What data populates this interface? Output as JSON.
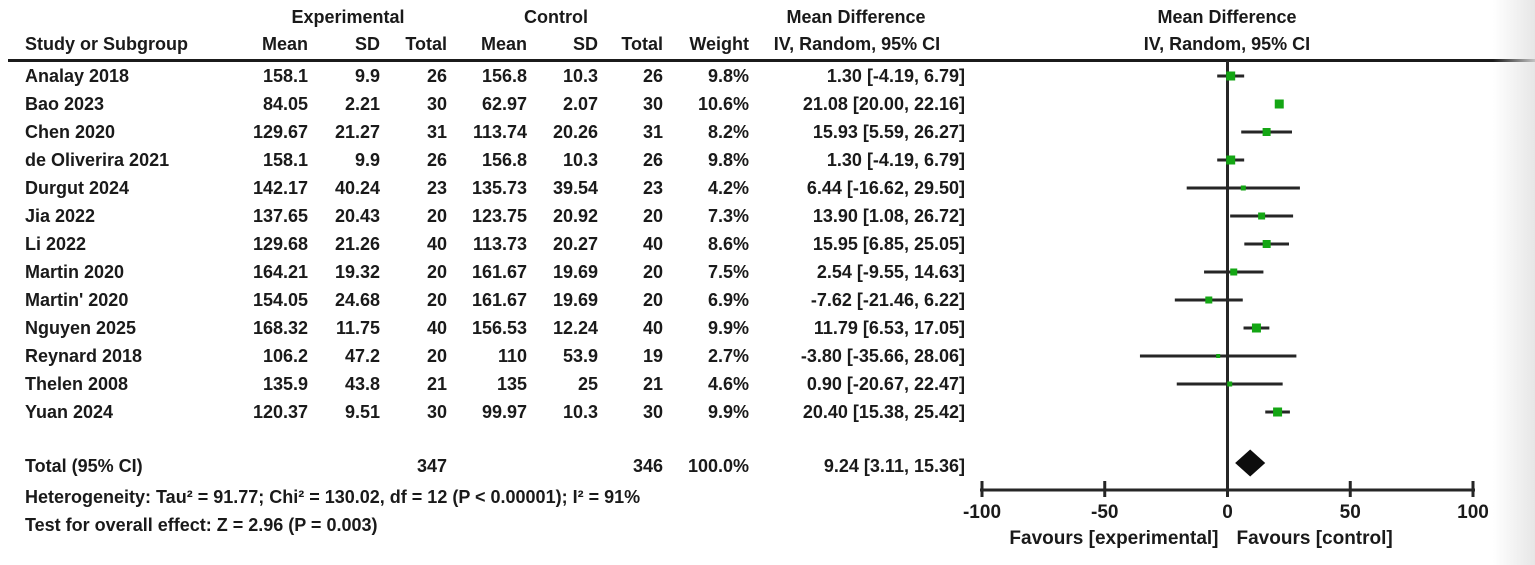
{
  "table": {
    "group_headers": {
      "experimental": "Experimental",
      "control": "Control",
      "md_text": "Mean Difference",
      "md_plot": "Mean Difference"
    },
    "col_headers": {
      "study": "Study or Subgroup",
      "mean": "Mean",
      "sd": "SD",
      "total": "Total",
      "weight": "Weight",
      "iv": "IV, Random, 95% CI",
      "iv_plot": "IV, Random, 95% CI"
    },
    "rows": [
      {
        "study": "Analay 2018",
        "exp_mean": "158.1",
        "exp_sd": "9.9",
        "exp_total": "26",
        "ctl_mean": "156.8",
        "ctl_sd": "10.3",
        "ctl_total": "26",
        "weight": "9.8%",
        "ci_text": "1.30 [-4.19, 6.79]"
      },
      {
        "study": "Bao 2023",
        "exp_mean": "84.05",
        "exp_sd": "2.21",
        "exp_total": "30",
        "ctl_mean": "62.97",
        "ctl_sd": "2.07",
        "ctl_total": "30",
        "weight": "10.6%",
        "ci_text": "21.08 [20.00, 22.16]"
      },
      {
        "study": "Chen 2020",
        "exp_mean": "129.67",
        "exp_sd": "21.27",
        "exp_total": "31",
        "ctl_mean": "113.74",
        "ctl_sd": "20.26",
        "ctl_total": "31",
        "weight": "8.2%",
        "ci_text": "15.93 [5.59, 26.27]"
      },
      {
        "study": "de Oliverira 2021",
        "exp_mean": "158.1",
        "exp_sd": "9.9",
        "exp_total": "26",
        "ctl_mean": "156.8",
        "ctl_sd": "10.3",
        "ctl_total": "26",
        "weight": "9.8%",
        "ci_text": "1.30 [-4.19, 6.79]"
      },
      {
        "study": "Durgut 2024",
        "exp_mean": "142.17",
        "exp_sd": "40.24",
        "exp_total": "23",
        "ctl_mean": "135.73",
        "ctl_sd": "39.54",
        "ctl_total": "23",
        "weight": "4.2%",
        "ci_text": "6.44 [-16.62, 29.50]"
      },
      {
        "study": "Jia 2022",
        "exp_mean": "137.65",
        "exp_sd": "20.43",
        "exp_total": "20",
        "ctl_mean": "123.75",
        "ctl_sd": "20.92",
        "ctl_total": "20",
        "weight": "7.3%",
        "ci_text": "13.90 [1.08, 26.72]"
      },
      {
        "study": "Li 2022",
        "exp_mean": "129.68",
        "exp_sd": "21.26",
        "exp_total": "40",
        "ctl_mean": "113.73",
        "ctl_sd": "20.27",
        "ctl_total": "40",
        "weight": "8.6%",
        "ci_text": "15.95 [6.85, 25.05]"
      },
      {
        "study": "Martin 2020",
        "exp_mean": "164.21",
        "exp_sd": "19.32",
        "exp_total": "20",
        "ctl_mean": "161.67",
        "ctl_sd": "19.69",
        "ctl_total": "20",
        "weight": "7.5%",
        "ci_text": "2.54 [-9.55, 14.63]"
      },
      {
        "study": "Martin' 2020",
        "exp_mean": "154.05",
        "exp_sd": "24.68",
        "exp_total": "20",
        "ctl_mean": "161.67",
        "ctl_sd": "19.69",
        "ctl_total": "20",
        "weight": "6.9%",
        "ci_text": "-7.62 [-21.46, 6.22]"
      },
      {
        "study": "Nguyen 2025",
        "exp_mean": "168.32",
        "exp_sd": "11.75",
        "exp_total": "40",
        "ctl_mean": "156.53",
        "ctl_sd": "12.24",
        "ctl_total": "40",
        "weight": "9.9%",
        "ci_text": "11.79 [6.53, 17.05]"
      },
      {
        "study": "Reynard 2018",
        "exp_mean": "106.2",
        "exp_sd": "47.2",
        "exp_total": "20",
        "ctl_mean": "110",
        "ctl_sd": "53.9",
        "ctl_total": "19",
        "weight": "2.7%",
        "ci_text": "-3.80 [-35.66, 28.06]"
      },
      {
        "study": "Thelen 2008",
        "exp_mean": "135.9",
        "exp_sd": "43.8",
        "exp_total": "21",
        "ctl_mean": "135",
        "ctl_sd": "25",
        "ctl_total": "21",
        "weight": "4.6%",
        "ci_text": "0.90 [-20.67, 22.47]"
      },
      {
        "study": "Yuan 2024",
        "exp_mean": "120.37",
        "exp_sd": "9.51",
        "exp_total": "30",
        "ctl_mean": "99.97",
        "ctl_sd": "10.3",
        "ctl_total": "30",
        "weight": "9.9%",
        "ci_text": "20.40 [15.38, 25.42]"
      }
    ],
    "total_row": {
      "label": "Total (95% CI)",
      "exp_total": "347",
      "ctl_total": "346",
      "weight": "100.0%",
      "ci_text": "9.24 [3.11, 15.36]"
    },
    "footer": {
      "heterogeneity": "Heterogeneity: Tau² = 91.77; Chi² = 130.02, df = 12 (P < 0.00001); I² = 91%",
      "overall_effect": "Test for overall effect: Z = 2.96 (P = 0.003)"
    }
  },
  "chart_data": {
    "type": "forest",
    "effect_measure": "Mean Difference",
    "model": "IV, Random, 95% CI",
    "studies": [
      {
        "name": "Analay 2018",
        "est": 1.3,
        "lo": -4.19,
        "hi": 6.79,
        "weight_pct": 9.8
      },
      {
        "name": "Bao 2023",
        "est": 21.08,
        "lo": 20.0,
        "hi": 22.16,
        "weight_pct": 10.6
      },
      {
        "name": "Chen 2020",
        "est": 15.93,
        "lo": 5.59,
        "hi": 26.27,
        "weight_pct": 8.2
      },
      {
        "name": "de Oliverira 2021",
        "est": 1.3,
        "lo": -4.19,
        "hi": 6.79,
        "weight_pct": 9.8
      },
      {
        "name": "Durgut 2024",
        "est": 6.44,
        "lo": -16.62,
        "hi": 29.5,
        "weight_pct": 4.2
      },
      {
        "name": "Jia 2022",
        "est": 13.9,
        "lo": 1.08,
        "hi": 26.72,
        "weight_pct": 7.3
      },
      {
        "name": "Li 2022",
        "est": 15.95,
        "lo": 6.85,
        "hi": 25.05,
        "weight_pct": 8.6
      },
      {
        "name": "Martin 2020",
        "est": 2.54,
        "lo": -9.55,
        "hi": 14.63,
        "weight_pct": 7.5
      },
      {
        "name": "Martin' 2020",
        "est": -7.62,
        "lo": -21.46,
        "hi": 6.22,
        "weight_pct": 6.9
      },
      {
        "name": "Nguyen 2025",
        "est": 11.79,
        "lo": 6.53,
        "hi": 17.05,
        "weight_pct": 9.9
      },
      {
        "name": "Reynard 2018",
        "est": -3.8,
        "lo": -35.66,
        "hi": 28.06,
        "weight_pct": 2.7
      },
      {
        "name": "Thelen 2008",
        "est": 0.9,
        "lo": -20.67,
        "hi": 22.47,
        "weight_pct": 4.6
      },
      {
        "name": "Yuan 2024",
        "est": 20.4,
        "lo": 15.38,
        "hi": 25.42,
        "weight_pct": 9.9
      }
    ],
    "overall": {
      "label": "Total (95% CI)",
      "est": 9.24,
      "lo": 3.11,
      "hi": 15.36
    },
    "axis": {
      "min": -100,
      "max": 100,
      "ticks": [
        -100,
        -50,
        0,
        50,
        100
      ]
    },
    "favours_left": "Favours [experimental]",
    "favours_right": "Favours [control]",
    "marker_color": "#14a614",
    "line_color": "#262626",
    "diamond_color": "#0d0d0d"
  }
}
